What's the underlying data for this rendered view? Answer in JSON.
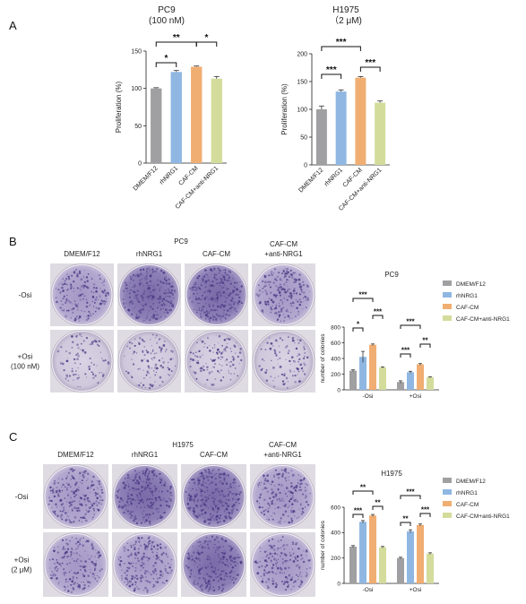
{
  "panel_letters": {
    "a": "A",
    "b": "B",
    "c": "C"
  },
  "colors": {
    "DMEM/F12": "#a0a0a2",
    "rhNRG1": "#8fb7e2",
    "CAF-CM": "#f0ae73",
    "CAF-CM+anti-NRG1": "#d4dc9b"
  },
  "panel_a": {
    "left": {
      "title": "PC9",
      "subtitle": "(100 nM)"
    },
    "right": {
      "title": "H1975",
      "subtitle": "（2 μM)"
    }
  },
  "panel_b": {
    "header": "PC9",
    "columns": [
      "DMEM/F12",
      "rhNRG1",
      "CAF-CM",
      "CAF-CM\n+anti-NRG1"
    ],
    "rows": [
      "-Osi",
      "+Osi\n(100 nM)"
    ]
  },
  "panel_c": {
    "header": "H1975",
    "columns": [
      "DMEM/F12",
      "rhNRG1",
      "CAF-CM",
      "CAF-CM\n+anti-NRG1"
    ],
    "rows": [
      "-Osi",
      "+Osi\n(2 μM)"
    ]
  },
  "chart_data": [
    {
      "type": "bar",
      "id": "a-left",
      "title": "PC9",
      "subtitle": "(100 nM)",
      "categories": [
        "DMEM/F12",
        "rhNRG1",
        "CAF-CM",
        "CAF-CM+anti-NRG1"
      ],
      "values": [
        100,
        122,
        129,
        113
      ],
      "errors": [
        1,
        2,
        1,
        3
      ],
      "ylabel": "Proliferation (%)",
      "ylim": [
        0,
        150
      ],
      "yticks": [
        0,
        50,
        100,
        150
      ],
      "significance": [
        {
          "from": 0,
          "to": 1,
          "label": "*"
        },
        {
          "from": 0,
          "to": 2,
          "label": "**"
        },
        {
          "from": 2,
          "to": 3,
          "label": "*"
        }
      ]
    },
    {
      "type": "bar",
      "id": "a-right",
      "title": "H1975",
      "subtitle": "（2 μM)",
      "categories": [
        "DMEM/F12",
        "rhNRG1",
        "CAF-CM",
        "CAF-CM+anti-NRG1"
      ],
      "values": [
        100,
        132,
        157,
        112
      ],
      "errors": [
        6,
        3,
        2,
        3
      ],
      "ylabel": "Proliferation (%)",
      "ylim": [
        0,
        200
      ],
      "yticks": [
        0,
        50,
        100,
        150,
        200
      ],
      "significance": [
        {
          "from": 0,
          "to": 1,
          "label": "***"
        },
        {
          "from": 0,
          "to": 2,
          "label": "***"
        },
        {
          "from": 2,
          "to": 3,
          "label": "***"
        }
      ]
    },
    {
      "type": "bar",
      "id": "b-colonies",
      "title": "PC9",
      "categories": [
        "-Osi",
        "+Osi"
      ],
      "series": [
        {
          "name": "DMEM/F12",
          "values": [
            245,
            100
          ],
          "errors": [
            10,
            15
          ]
        },
        {
          "name": "rhNRG1",
          "values": [
            420,
            225
          ],
          "errors": [
            70,
            12
          ]
        },
        {
          "name": "CAF-CM",
          "values": [
            575,
            325
          ],
          "errors": [
            10,
            10
          ]
        },
        {
          "name": "CAF-CM+anti-NRG1",
          "values": [
            285,
            160
          ],
          "errors": [
            8,
            6
          ]
        }
      ],
      "ylabel": "number of colonies",
      "ylim": [
        0,
        800
      ],
      "yticks": [
        0,
        200,
        400,
        600,
        800
      ],
      "legend": "right",
      "significance": [
        {
          "group": 0,
          "from": 0,
          "to": 2,
          "label": "***"
        },
        {
          "group": 0,
          "from": 0,
          "to": 1,
          "label": "*"
        },
        {
          "group": 0,
          "from": 2,
          "to": 3,
          "label": "***"
        },
        {
          "group": 1,
          "from": 0,
          "to": 2,
          "label": "***"
        },
        {
          "group": 1,
          "from": 0,
          "to": 1,
          "label": "***"
        },
        {
          "group": 1,
          "from": 2,
          "to": 3,
          "label": "**"
        }
      ]
    },
    {
      "type": "bar",
      "id": "c-colonies",
      "title": "H1975",
      "categories": [
        "-Osi",
        "+Osi"
      ],
      "series": [
        {
          "name": "DMEM/F12",
          "values": [
            290,
            200
          ],
          "errors": [
            8,
            6
          ]
        },
        {
          "name": "rhNRG1",
          "values": [
            485,
            410
          ],
          "errors": [
            10,
            12
          ]
        },
        {
          "name": "CAF-CM",
          "values": [
            535,
            460
          ],
          "errors": [
            8,
            8
          ]
        },
        {
          "name": "CAF-CM+anti-NRG1",
          "values": [
            285,
            235
          ],
          "errors": [
            6,
            6
          ]
        }
      ],
      "ylabel": "number of colonies",
      "ylim": [
        0,
        600
      ],
      "yticks": [
        0,
        200,
        400,
        600
      ],
      "legend": "right",
      "significance": [
        {
          "group": 0,
          "from": 0,
          "to": 2,
          "label": "**"
        },
        {
          "group": 0,
          "from": 0,
          "to": 1,
          "label": "***"
        },
        {
          "group": 0,
          "from": 2,
          "to": 3,
          "label": "**"
        },
        {
          "group": 1,
          "from": 0,
          "to": 2,
          "label": "***"
        },
        {
          "group": 1,
          "from": 0,
          "to": 1,
          "label": "**"
        },
        {
          "group": 1,
          "from": 2,
          "to": 3,
          "label": "***"
        }
      ]
    }
  ]
}
